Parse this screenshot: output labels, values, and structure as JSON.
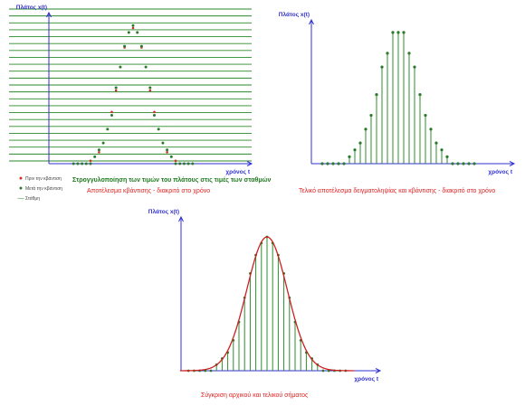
{
  "panels": {
    "quantization": {
      "y_axis_label": "Πλάτος x(t)",
      "x_axis_label": "χρόνος t",
      "caption_main": "Στρογγυλοποίηση των τιμών του πλάτους στις τιμές των σταθμών",
      "caption_result": "Αποτέλεσμα κβάντισης - διακριτό στο χρόνο",
      "legend": {
        "before": "Πριν την κβάντιση",
        "after": "Μετά την κβάντιση",
        "levels": "Στάθμη"
      }
    },
    "final": {
      "y_axis_label": "Πλάτος x(t)",
      "x_axis_label": "χρόνος t",
      "caption": "Τελικό αποτέλεσμα δειγματοληψίας και κβάντισης - διακριτό στο χρόνο"
    },
    "comparison": {
      "y_axis_label": "Πλάτος x(t)",
      "x_axis_label": "χρόνος t",
      "caption": "Σύγκριση αρχικού και τελικού σήματος"
    }
  },
  "colors": {
    "axis": "#3030d0",
    "level_lines": "#2a8a2a",
    "stems": "#2e8b2e",
    "markers_after": "#2a7a2a",
    "markers_before": "#d03020",
    "curve": "#cc2020",
    "caption_red": "#e02020",
    "caption_green": "#1c7a1c"
  },
  "chart_data": [
    {
      "type": "scatter",
      "name": "quantization",
      "x": [
        -14,
        -13,
        -12,
        -11,
        -10,
        -9,
        -8,
        -7,
        -6,
        -5,
        -4,
        -3,
        -2,
        -1,
        0,
        1,
        2,
        3,
        4,
        5,
        6,
        7,
        8,
        9,
        10,
        11,
        12,
        13,
        14
      ],
      "quantization_levels": 22,
      "grid": true
    },
    {
      "type": "bar",
      "name": "final",
      "x": [
        -14,
        -13,
        -12,
        -11,
        -10,
        -9,
        -8,
        -7,
        -6,
        -5,
        -4,
        -3,
        -2,
        -1,
        0,
        1,
        2,
        3,
        4,
        5,
        6,
        7,
        8,
        9,
        10,
        11,
        12,
        13,
        14
      ]
    },
    {
      "type": "line",
      "name": "comparison",
      "x": [
        -14,
        -13,
        -12,
        -11,
        -10,
        -9,
        -8,
        -7,
        -6,
        -5,
        -4,
        -3,
        -2,
        -1,
        0,
        1,
        2,
        3,
        4,
        5,
        6,
        7,
        8,
        9,
        10,
        11,
        12,
        13,
        14
      ]
    }
  ]
}
